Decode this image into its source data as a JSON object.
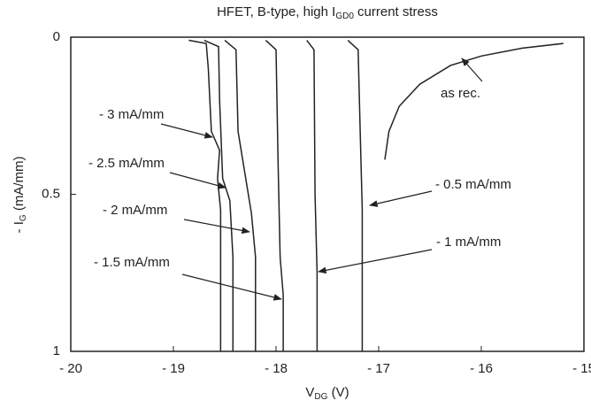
{
  "chart_data": {
    "type": "line",
    "title": [
      "HFET, B-type, high I",
      "GD0",
      " current stress"
    ],
    "x_label": [
      "V",
      "DG",
      " (V)"
    ],
    "y_label": [
      "- I",
      "G",
      " (mA/mm)"
    ],
    "xlim": [
      -20,
      -15
    ],
    "xticks": [
      {
        "value": -20,
        "label": "- 20"
      },
      {
        "value": -19,
        "label": "- 19"
      },
      {
        "value": -18,
        "label": "- 18"
      },
      {
        "value": -17,
        "label": "- 17"
      },
      {
        "value": -16,
        "label": "- 16"
      },
      {
        "value": -15,
        "label": "- 15"
      }
    ],
    "ylim": [
      0,
      1
    ],
    "y_inverted": true,
    "yticks": [
      0,
      0.5,
      1
    ],
    "grid": false,
    "series": [
      {
        "name": "- 3 mA/mm",
        "color": "#222222",
        "x": [
          -18.85,
          -18.68,
          -18.66,
          -18.63,
          -18.55,
          -18.57,
          -18.54,
          -18.54
        ],
        "values": [
          0.01,
          0.02,
          0.1,
          0.3,
          0.36,
          0.45,
          0.55,
          1
        ]
      },
      {
        "name": "- 2.5 mA/mm",
        "color": "#222222",
        "x": [
          -18.7,
          -18.56,
          -18.55,
          -18.52,
          -18.45,
          -18.42,
          -18.42
        ],
        "values": [
          0.01,
          0.03,
          0.2,
          0.45,
          0.52,
          0.7,
          1
        ]
      },
      {
        "name": "- 2 mA/mm",
        "color": "#222222",
        "x": [
          -18.5,
          -18.39,
          -18.37,
          -18.24,
          -18.2,
          -18.2
        ],
        "values": [
          0.01,
          0.04,
          0.3,
          0.56,
          0.7,
          1
        ]
      },
      {
        "name": "- 1.5 mA/mm",
        "color": "#222222",
        "x": [
          -18.1,
          -18.0,
          -17.98,
          -17.96,
          -17.93,
          -17.93
        ],
        "values": [
          0.01,
          0.04,
          0.4,
          0.7,
          0.82,
          1
        ]
      },
      {
        "name": "- 1 mA/mm",
        "color": "#222222",
        "x": [
          -17.7,
          -17.63,
          -17.62,
          -17.6,
          -17.6
        ],
        "values": [
          0.01,
          0.04,
          0.5,
          0.75,
          1
        ]
      },
      {
        "name": "- 0.5 mA/mm",
        "color": "#222222",
        "x": [
          -17.3,
          -17.2,
          -17.18,
          -17.16,
          -17.16
        ],
        "values": [
          0.01,
          0.04,
          0.3,
          0.55,
          1
        ]
      },
      {
        "name": "as rec.",
        "color": "#222222",
        "x": [
          -16.94,
          -16.9,
          -16.8,
          -16.6,
          -16.3,
          -16.0,
          -15.6,
          -15.2
        ],
        "values": [
          0.39,
          0.3,
          0.22,
          0.15,
          0.09,
          0.06,
          0.035,
          0.02
        ]
      }
    ]
  }
}
